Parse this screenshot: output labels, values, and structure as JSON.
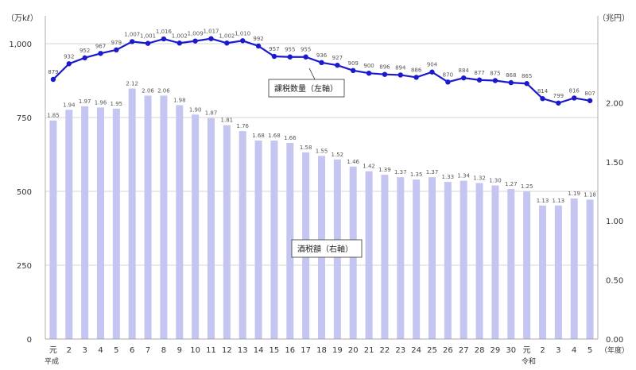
{
  "chart_data": {
    "type": "bar+line",
    "left_unit": "（万kℓ）",
    "right_unit": "（兆円）",
    "x_unit": "（年度）",
    "era_labels": {
      "heisei": "平成",
      "reiwa": "令和"
    },
    "categories": [
      "元",
      "2",
      "3",
      "4",
      "5",
      "6",
      "7",
      "8",
      "9",
      "10",
      "11",
      "12",
      "13",
      "14",
      "15",
      "16",
      "17",
      "18",
      "19",
      "20",
      "21",
      "22",
      "23",
      "24",
      "25",
      "26",
      "27",
      "28",
      "29",
      "30",
      "元",
      "2",
      "3",
      "4",
      "5"
    ],
    "left_axis": {
      "min": 0,
      "max": 1000,
      "ticks": [
        "0",
        "250",
        "500",
        "750",
        "1,000"
      ]
    },
    "right_axis": {
      "min": 0,
      "max": 2.5,
      "ticks": [
        "0.00",
        "0.50",
        "1.00",
        "1.50",
        "2.00"
      ]
    },
    "series": [
      {
        "name": "課税数量（左軸）",
        "axis": "left",
        "kind": "line",
        "color": "#1a1acc",
        "values": [
          879,
          932,
          952,
          967,
          979,
          1007,
          1001,
          1016,
          1002,
          1009,
          1017,
          1002,
          1010,
          992,
          957,
          955,
          955,
          936,
          927,
          909,
          900,
          896,
          894,
          886,
          904,
          870,
          884,
          877,
          875,
          868,
          865,
          814,
          799,
          816,
          807
        ],
        "labels": [
          "879",
          "932",
          "952",
          "967",
          "979",
          "1,007",
          "1,001",
          "1,016",
          "1,002",
          "1,009",
          "1,017",
          "1,002",
          "1,010",
          "992",
          "957",
          "955",
          "955",
          "936",
          "927",
          "909",
          "900",
          "896",
          "894",
          "886",
          "904",
          "870",
          "884",
          "877",
          "875",
          "868",
          "865",
          "814",
          "799",
          "816",
          "807"
        ]
      },
      {
        "name": "酒税額（右軸）",
        "axis": "right",
        "kind": "bar",
        "color": "#c5c5f2",
        "values": [
          1.85,
          1.94,
          1.97,
          1.96,
          1.95,
          2.12,
          2.06,
          2.06,
          1.98,
          1.9,
          1.87,
          1.81,
          1.76,
          1.68,
          1.68,
          1.66,
          1.58,
          1.55,
          1.52,
          1.46,
          1.42,
          1.39,
          1.37,
          1.35,
          1.37,
          1.33,
          1.34,
          1.32,
          1.3,
          1.27,
          1.25,
          1.13,
          1.13,
          1.19,
          1.18
        ],
        "labels": [
          "1.85",
          "1.94",
          "1.97",
          "1.96",
          "1.95",
          "2.12",
          "2.06",
          "2.06",
          "1.98",
          "1.90",
          "1.87",
          "1.81",
          "1.76",
          "1.68",
          "1.68",
          "1.66",
          "1.58",
          "1.55",
          "1.52",
          "1.46",
          "1.42",
          "1.39",
          "1.37",
          "1.35",
          "1.37",
          "1.33",
          "1.34",
          "1.32",
          "1.30",
          "1.27",
          "1.25",
          "1.13",
          "1.13",
          "1.19",
          "1.18"
        ]
      }
    ],
    "annotations": {
      "line_callout": "課税数量（左軸）",
      "bar_callout": "酒税額（右軸）"
    }
  }
}
